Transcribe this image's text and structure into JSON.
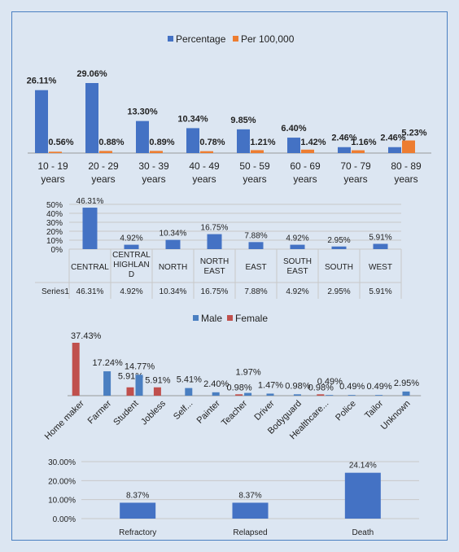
{
  "chart_data": [
    {
      "type": "bar",
      "categories": [
        "10 - 19 years",
        "20 - 29 years",
        "30 - 39 years",
        "40 - 49 years",
        "50 - 59 years",
        "60 - 69 years",
        "70 - 79 years",
        "80 - 89 years"
      ],
      "series": [
        {
          "name": "Percentage",
          "color": "#4472c4",
          "values": [
            26.11,
            29.06,
            13.3,
            10.34,
            9.85,
            6.4,
            2.46,
            2.46
          ],
          "labels": [
            "26.11%",
            "29.06%",
            "13.30%",
            "10.34%",
            "9.85%",
            "6.40%",
            "2.46%",
            "2.46%"
          ]
        },
        {
          "name": "Per 100,000",
          "color": "#ed7d31",
          "values": [
            0.56,
            0.88,
            0.89,
            0.78,
            1.21,
            1.42,
            1.16,
            5.23
          ],
          "labels": [
            "0.56%",
            "0.88%",
            "0.89%",
            "0.78%",
            "1.21%",
            "1.42%",
            "1.16%",
            "5.23%"
          ]
        }
      ],
      "legend": "top-center",
      "grid": false
    },
    {
      "type": "bar",
      "categories": [
        "CENTRAL",
        "CENTRAL HIGHLAND",
        "NORTH",
        "NORTH EAST",
        "EAST",
        "SOUTH EAST",
        "SOUTH",
        "WEST"
      ],
      "series": [
        {
          "name": "Series1",
          "color": "#4472c4",
          "values": [
            46.31,
            4.92,
            10.34,
            16.75,
            7.88,
            4.92,
            2.95,
            5.91
          ],
          "labels": [
            "46.31%",
            "4.92%",
            "10.34%",
            "16.75%",
            "7.88%",
            "4.92%",
            "2.95%",
            "5.91%"
          ]
        }
      ],
      "yticks": [
        "0%",
        "10%",
        "20%",
        "30%",
        "40%",
        "50%"
      ],
      "ylim": [
        0,
        50
      ],
      "grid": true,
      "data_table": true
    },
    {
      "type": "bar",
      "categories": [
        "Home maker",
        "Farmer",
        "Student",
        "Jobless",
        "Self...",
        "Painter",
        "Teacher",
        "Driver",
        "Bodyguard",
        "Healthcare...",
        "Police",
        "Tailor",
        "Unknown"
      ],
      "series": [
        {
          "name": "Male",
          "color": "#4a7fc1",
          "values": [
            null,
            17.24,
            14.77,
            null,
            5.41,
            2.4,
            1.97,
            1.47,
            0.98,
            0.49,
            0.49,
            0.49,
            2.95
          ],
          "labels": [
            "",
            "17.24%",
            "14.77%",
            "",
            "5.41%",
            "2.40%",
            "1.97%",
            "1.47%",
            "0.98%",
            "0.49%",
            "0.49%",
            "0.49%",
            "2.95%"
          ]
        },
        {
          "name": "Female",
          "color": "#c0504d",
          "values": [
            37.43,
            null,
            5.91,
            5.91,
            null,
            null,
            0.98,
            null,
            null,
            0.98,
            null,
            null,
            null
          ],
          "labels": [
            "37.43%",
            "",
            "5.91%",
            "5.91%",
            "",
            "",
            "0.98%",
            "",
            "",
            "0.98%",
            "",
            "",
            ""
          ]
        }
      ],
      "legend": "top-center",
      "grid": false
    },
    {
      "type": "bar",
      "categories": [
        "Refractory",
        "Relapsed",
        "Death"
      ],
      "series": [
        {
          "color": "#4472c4",
          "values": [
            8.37,
            8.37,
            24.14
          ],
          "labels": [
            "8.37%",
            "8.37%",
            "24.14%"
          ]
        }
      ],
      "yticks": [
        "0.00%",
        "10.00%",
        "20.00%",
        "30.00%"
      ],
      "ylim": [
        0,
        30
      ],
      "grid": true
    }
  ]
}
